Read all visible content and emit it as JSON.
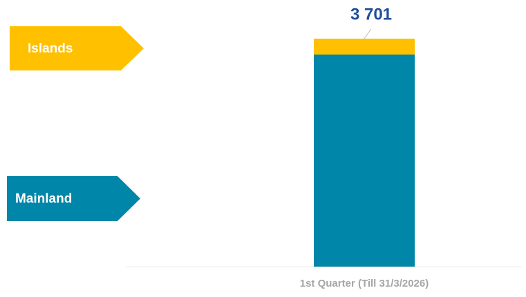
{
  "chart_data": {
    "type": "stacked_bar",
    "categories": [
      "1st Quarter (Till 31/3/2026)"
    ],
    "series": [
      {
        "name": "Mainland",
        "color": "#0086a8",
        "values": [
          3443
        ]
      },
      {
        "name": "Islands",
        "color": "#ffc000",
        "values": [
          258
        ]
      }
    ],
    "totals": [
      3701
    ],
    "total_labels": [
      "3 701"
    ],
    "ylim": [
      0,
      4000
    ]
  }
}
